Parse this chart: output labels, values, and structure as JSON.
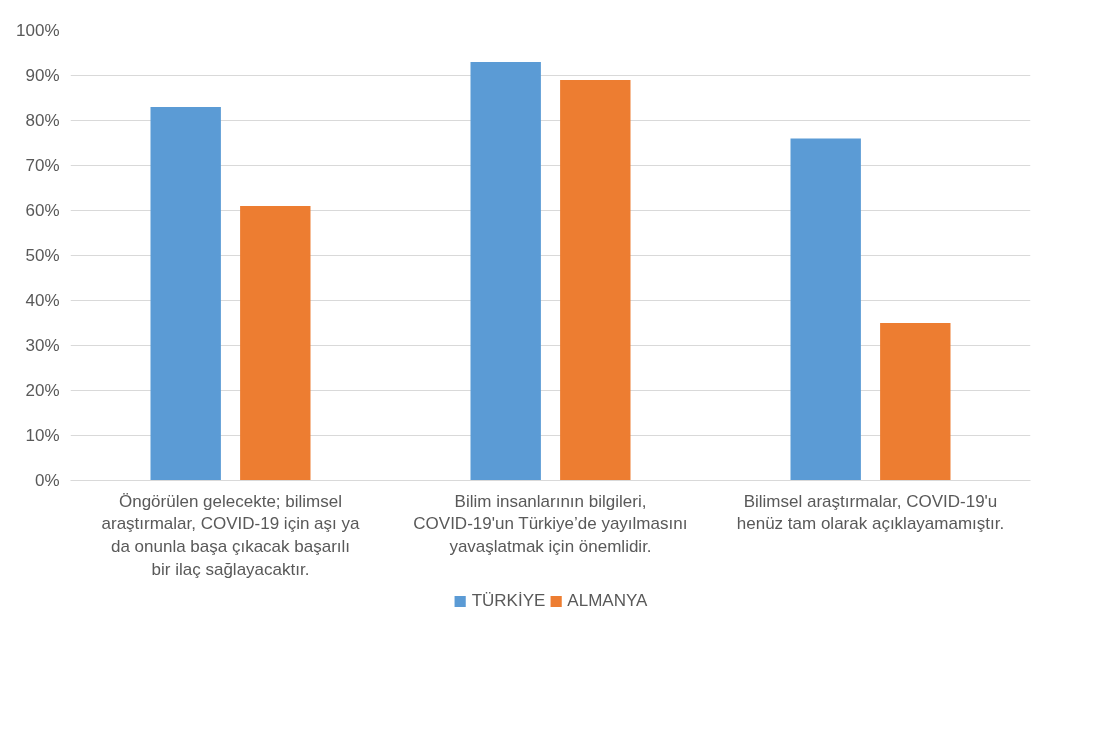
{
  "chart_data": {
    "type": "bar",
    "categories": [
      "Öngörülen gelecekte; bilimsel araştırmalar, COVID-19 için aşı ya da onunla başa çıkacak başarılı bir ilaç sağlayacaktır.",
      "Bilim insanlarının bilgileri, COVID-19'un Türkiye’de yayılmasını yavaşlatmak için önemlidir.",
      "Bilimsel araştırmalar, COVID-19'u henüz tam olarak açıklayamamıştır."
    ],
    "series": [
      {
        "name": "TÜRKİYE",
        "color": "#5b9bd5",
        "values": [
          83,
          93,
          76
        ]
      },
      {
        "name": "ALMANYA",
        "color": "#ed7d31",
        "values": [
          61,
          89,
          35
        ]
      }
    ],
    "ylim": [
      0,
      100
    ],
    "yticks": [
      {
        "value": 0,
        "label": "0%"
      },
      {
        "value": 10,
        "label": "10%"
      },
      {
        "value": 20,
        "label": "20%"
      },
      {
        "value": 30,
        "label": "30%"
      },
      {
        "value": 40,
        "label": "40%"
      },
      {
        "value": 50,
        "label": "50%"
      },
      {
        "value": 60,
        "label": "60%"
      },
      {
        "value": 70,
        "label": "70%"
      },
      {
        "value": 80,
        "label": "80%"
      },
      {
        "value": 90,
        "label": "90%"
      },
      {
        "value": 100,
        "label": "100%"
      }
    ],
    "grid": "y",
    "legend": "bottom"
  }
}
